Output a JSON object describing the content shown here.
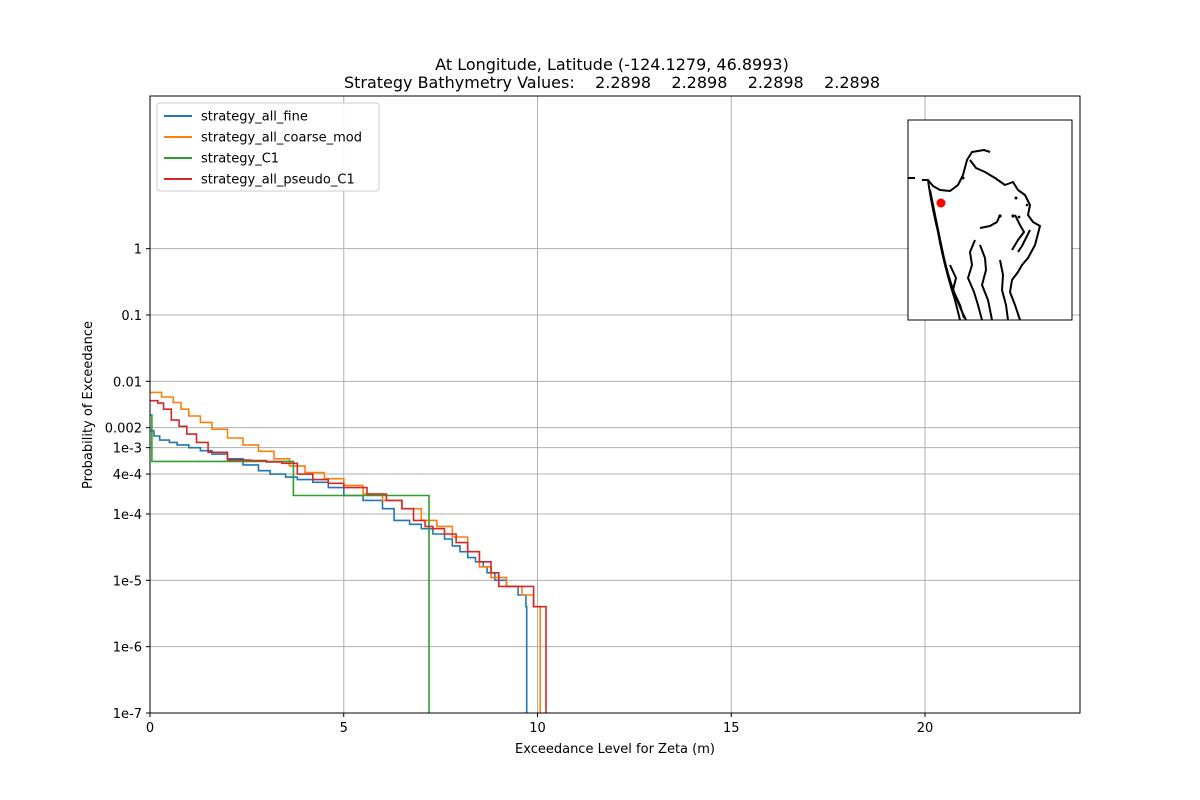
{
  "chart_data": {
    "type": "line",
    "title_line1": "At Longitude, Latitude (-124.1279,  46.8993)",
    "title_line2": "Strategy Bathymetry Values:    2.2898    2.2898    2.2898    2.2898",
    "xlabel": "Exceedance Level for Zeta (m)",
    "ylabel": "Probability of Exceedance",
    "xlim": [
      0,
      24
    ],
    "y_scale": "log",
    "ylim": [
      1e-07,
      200
    ],
    "x_ticks": [
      {
        "value": 0,
        "label": "0"
      },
      {
        "value": 5,
        "label": "5"
      },
      {
        "value": 10,
        "label": "10"
      },
      {
        "value": 15,
        "label": "15"
      },
      {
        "value": 20,
        "label": "20"
      }
    ],
    "y_ticks": [
      {
        "value": 1,
        "label": "1"
      },
      {
        "value": 0.1,
        "label": "0.1"
      },
      {
        "value": 0.01,
        "label": "0.01"
      },
      {
        "value": 0.002,
        "label": "0.002"
      },
      {
        "value": 0.001,
        "label": "1e-3"
      },
      {
        "value": 0.0004,
        "label": "4e-4"
      },
      {
        "value": 0.0001,
        "label": "1e-4"
      },
      {
        "value": 1e-05,
        "label": "1e-5"
      },
      {
        "value": 1e-06,
        "label": "1e-6"
      },
      {
        "value": 1e-07,
        "label": "1e-7"
      }
    ],
    "grid": true,
    "legend_position": "upper-left",
    "series": [
      {
        "name": "strategy_all_fine",
        "color": "#1f77b4",
        "x": [
          0,
          0.1,
          0.25,
          0.5,
          0.7,
          1.0,
          1.3,
          1.6,
          2.0,
          2.4,
          2.8,
          3.1,
          3.5,
          3.8,
          4.2,
          4.6,
          5.0,
          5.5,
          6.0,
          6.3,
          6.7,
          7.0,
          7.3,
          7.6,
          7.8,
          8.0,
          8.2,
          8.4,
          8.6,
          8.7,
          8.9,
          9.2,
          9.5,
          9.7,
          9.72
        ],
        "y": [
          0.0018,
          0.0015,
          0.0013,
          0.0012,
          0.0011,
          0.001,
          0.0009,
          0.0008,
          0.00068,
          0.00055,
          0.00045,
          0.0004,
          0.00036,
          0.00033,
          0.0003,
          0.00025,
          0.00019,
          0.00016,
          0.00012,
          8e-05,
          7e-05,
          6e-05,
          5e-05,
          4.2e-05,
          3.3e-05,
          2.7e-05,
          2.2e-05,
          1.9e-05,
          1.6e-05,
          1.3e-05,
          1e-05,
          8.1e-06,
          6e-06,
          4e-06,
          1e-07
        ]
      },
      {
        "name": "strategy_all_coarse_mod",
        "color": "#ff7f0e",
        "x": [
          0,
          0.3,
          0.6,
          0.8,
          1.0,
          1.3,
          1.6,
          2.0,
          2.4,
          2.8,
          3.2,
          3.6,
          4.0,
          4.5,
          5.0,
          5.5,
          6.0,
          6.5,
          7.0,
          7.4,
          7.8,
          8.2,
          8.5,
          8.8,
          9.2,
          9.6,
          9.9,
          10.05,
          10.07
        ],
        "y": [
          0.0068,
          0.0058,
          0.0048,
          0.0038,
          0.003,
          0.0024,
          0.0019,
          0.0014,
          0.0011,
          0.00088,
          0.00068,
          0.00053,
          0.00042,
          0.00034,
          0.00027,
          0.0002,
          0.00016,
          0.00012,
          8e-05,
          6.5e-05,
          4.5e-05,
          2.7e-05,
          1.6e-05,
          1.1e-05,
          8.1e-06,
          6e-06,
          4e-06,
          4e-06,
          1e-07
        ]
      },
      {
        "name": "strategy_C1",
        "color": "#2ca02c",
        "x": [
          0,
          0.05,
          0.05,
          3.7,
          3.7,
          7.2,
          7.2
        ],
        "y": [
          0.0031,
          0.0031,
          0.00062,
          0.00062,
          0.00019,
          0.00019,
          1e-07
        ]
      },
      {
        "name": "strategy_all_pseudo_C1",
        "color": "#d62728",
        "x": [
          0,
          0.2,
          0.35,
          0.55,
          0.75,
          0.95,
          1.2,
          1.5,
          2.0,
          2.6,
          3.0,
          3.4,
          3.8,
          4.2,
          4.6,
          5.0,
          5.6,
          6.1,
          6.5,
          6.8,
          7.1,
          7.3,
          7.6,
          7.9,
          8.2,
          8.5,
          8.8,
          9.0,
          9.3,
          9.6,
          9.9,
          10.1,
          10.2,
          10.22
        ],
        "y": [
          0.0051,
          0.0047,
          0.0038,
          0.0026,
          0.0021,
          0.0016,
          0.0012,
          0.00085,
          0.00065,
          0.00064,
          0.00061,
          0.00058,
          0.0004,
          0.00033,
          0.00029,
          0.00025,
          0.0002,
          0.00016,
          0.00012,
          8e-05,
          6.5e-05,
          6e-05,
          5e-05,
          3.7e-05,
          2.7e-05,
          1.9e-05,
          1.3e-05,
          8.1e-06,
          8.1e-06,
          8.1e-06,
          4e-06,
          4e-06,
          4e-06,
          1e-07
        ]
      }
    ],
    "inset_map": {
      "marker_color": "#ff0000"
    }
  }
}
